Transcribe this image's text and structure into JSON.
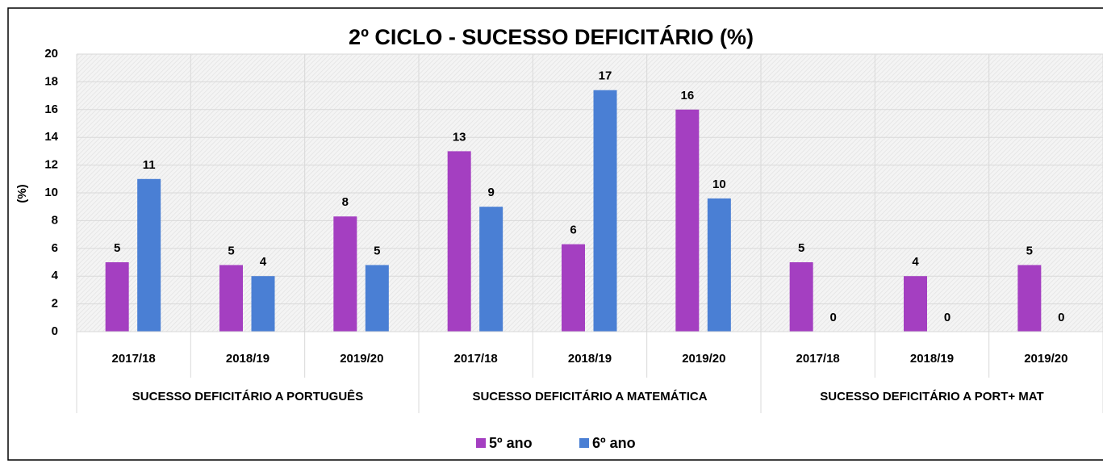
{
  "chart_data": {
    "type": "bar",
    "title": "2º CICLO - SUCESSO DEFICITÁRIO (%)",
    "y_label": "(%)",
    "groups": [
      "SUCESSO DEFICITÁRIO A PORTUGUÊS",
      "SUCESSO DEFICITÁRIO A MATEMÁTICA",
      "SUCESSO DEFICITÁRIO A PORT+ MAT"
    ],
    "categories": [
      "2017/18",
      "2018/19",
      "2019/20",
      "2017/18",
      "2018/19",
      "2019/20",
      "2017/18",
      "2018/19",
      "2019/20"
    ],
    "series": [
      {
        "name": "5º ano",
        "color": "#a43fc1",
        "values": [
          5.0,
          4.8,
          8.3,
          13.0,
          6.3,
          16.0,
          5.0,
          4.0,
          4.8
        ],
        "value_labels": [
          "5",
          "5",
          "8",
          "13",
          "6",
          "16",
          "5",
          "4",
          "5"
        ]
      },
      {
        "name": "6º ano",
        "color": "#4a7fd4",
        "values": [
          11.0,
          4.0,
          4.8,
          9.0,
          17.4,
          9.6,
          0,
          0,
          0
        ],
        "value_labels": [
          "11",
          "4",
          "5",
          "9",
          "17",
          "10",
          "0",
          "0",
          "0"
        ]
      }
    ],
    "ylim": [
      0,
      20
    ],
    "yticks": [
      0,
      2,
      4,
      6,
      8,
      10,
      12,
      14,
      16,
      18,
      20
    ],
    "grid": true,
    "legend": "bottom"
  }
}
